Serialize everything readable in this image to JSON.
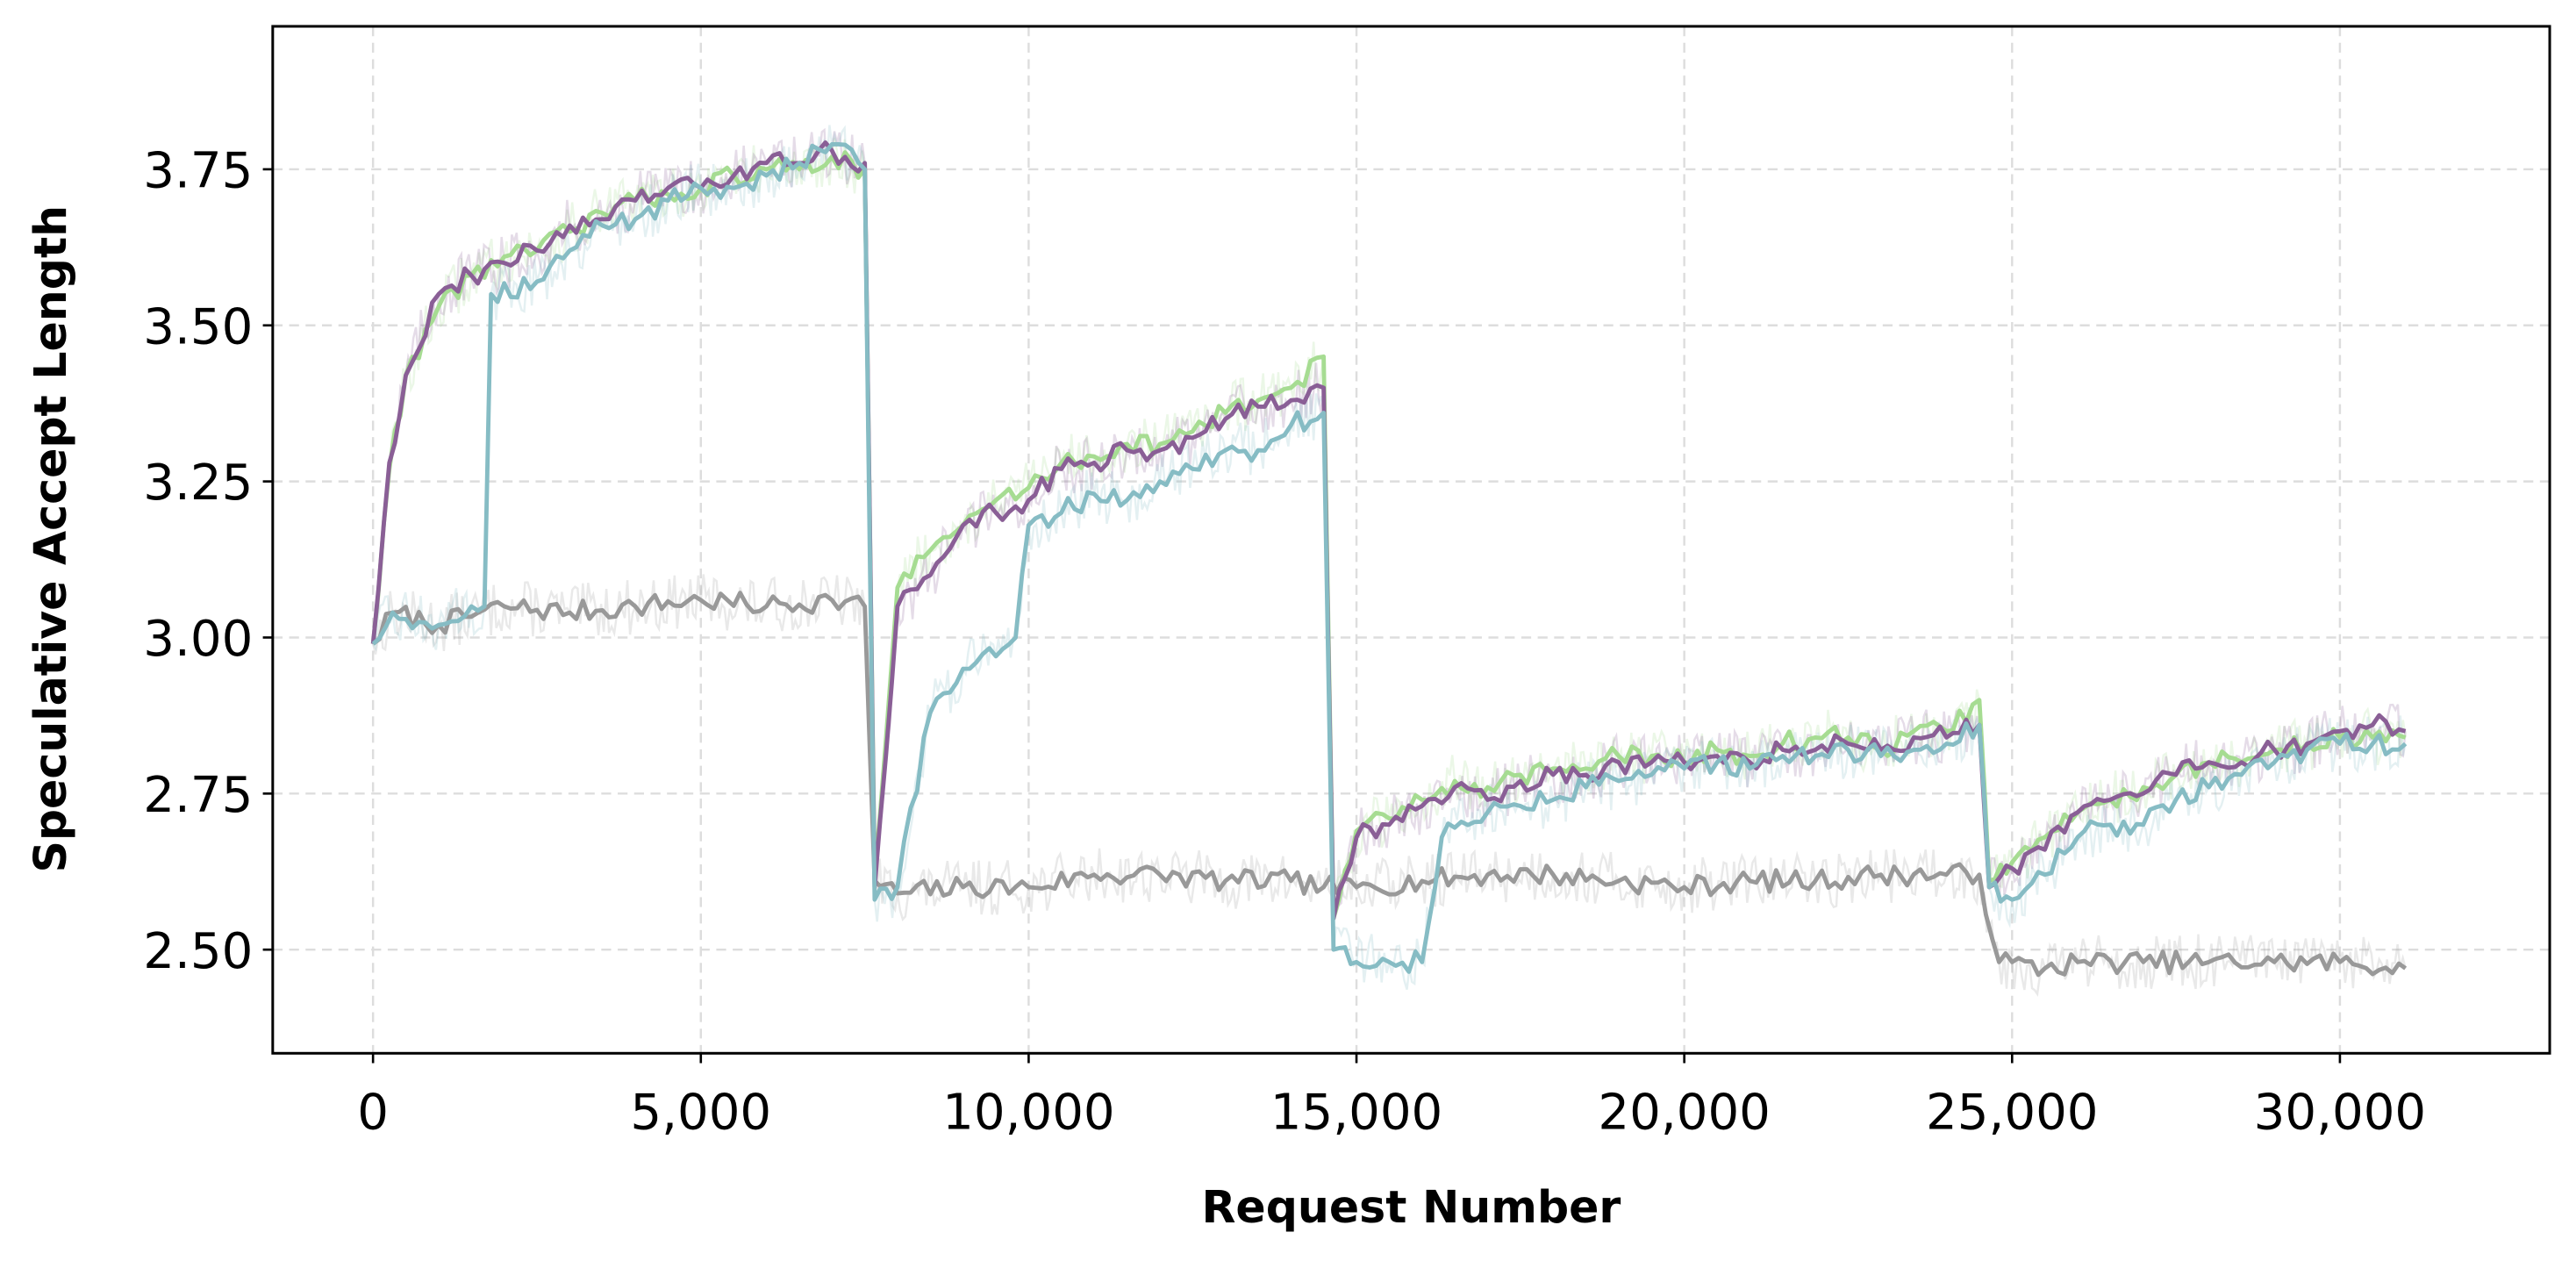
{
  "chart_data": {
    "type": "line",
    "title": "",
    "xlabel": "Request Number",
    "ylabel": "Speculative Accept Length",
    "xlim": [
      -1530,
      33200
    ],
    "ylim": [
      2.334,
      3.979
    ],
    "grid": true,
    "legend": "none",
    "xticks": [
      0,
      5000,
      10000,
      15000,
      20000,
      25000,
      30000
    ],
    "xtick_labels": [
      "0",
      "5,000",
      "10,000",
      "15,000",
      "20,000",
      "25,000",
      "30,000"
    ],
    "yticks": [
      2.5,
      2.75,
      3.0,
      3.25,
      3.5,
      3.75
    ],
    "ytick_labels": [
      "2.50",
      "2.75",
      "3.00",
      "3.25",
      "3.50",
      "3.75"
    ],
    "series": [
      {
        "name": "gray",
        "color": "#999999",
        "points": [
          [
            0,
            2.99
          ],
          [
            300,
            3.04
          ],
          [
            1000,
            3.02
          ],
          [
            2000,
            3.05
          ],
          [
            3000,
            3.04
          ],
          [
            4000,
            3.05
          ],
          [
            5000,
            3.06
          ],
          [
            6000,
            3.05
          ],
          [
            7000,
            3.06
          ],
          [
            7500,
            3.05
          ],
          [
            7650,
            2.61
          ],
          [
            8000,
            2.59
          ],
          [
            9000,
            2.6
          ],
          [
            10000,
            2.6
          ],
          [
            11000,
            2.62
          ],
          [
            12000,
            2.62
          ],
          [
            13000,
            2.61
          ],
          [
            14000,
            2.61
          ],
          [
            14500,
            2.6
          ],
          [
            15000,
            2.6
          ],
          [
            16000,
            2.61
          ],
          [
            17000,
            2.62
          ],
          [
            18000,
            2.62
          ],
          [
            19000,
            2.61
          ],
          [
            20000,
            2.6
          ],
          [
            21000,
            2.61
          ],
          [
            22000,
            2.61
          ],
          [
            23000,
            2.62
          ],
          [
            24000,
            2.62
          ],
          [
            24500,
            2.62
          ],
          [
            24800,
            2.48
          ],
          [
            25500,
            2.47
          ],
          [
            26000,
            2.48
          ],
          [
            27000,
            2.48
          ],
          [
            28000,
            2.48
          ],
          [
            29000,
            2.48
          ],
          [
            30000,
            2.48
          ],
          [
            31000,
            2.47
          ]
        ]
      },
      {
        "name": "green",
        "color": "#a6dc92",
        "points": [
          [
            0,
            2.99
          ],
          [
            250,
            3.27
          ],
          [
            500,
            3.42
          ],
          [
            1000,
            3.53
          ],
          [
            1500,
            3.58
          ],
          [
            2000,
            3.61
          ],
          [
            2500,
            3.62
          ],
          [
            3000,
            3.65
          ],
          [
            3500,
            3.68
          ],
          [
            4000,
            3.7
          ],
          [
            4500,
            3.71
          ],
          [
            5000,
            3.72
          ],
          [
            5500,
            3.74
          ],
          [
            6000,
            3.75
          ],
          [
            6500,
            3.75
          ],
          [
            7000,
            3.77
          ],
          [
            7500,
            3.75
          ],
          [
            7650,
            2.62
          ],
          [
            8000,
            3.08
          ],
          [
            8500,
            3.14
          ],
          [
            9000,
            3.18
          ],
          [
            9500,
            3.22
          ],
          [
            10000,
            3.24
          ],
          [
            10500,
            3.28
          ],
          [
            11000,
            3.29
          ],
          [
            11500,
            3.31
          ],
          [
            12000,
            3.31
          ],
          [
            12500,
            3.33
          ],
          [
            13000,
            3.36
          ],
          [
            13500,
            3.38
          ],
          [
            14000,
            3.4
          ],
          [
            14500,
            3.45
          ],
          [
            14650,
            2.55
          ],
          [
            15000,
            2.69
          ],
          [
            15500,
            2.71
          ],
          [
            16000,
            2.74
          ],
          [
            16500,
            2.77
          ],
          [
            17000,
            2.76
          ],
          [
            17500,
            2.78
          ],
          [
            18000,
            2.79
          ],
          [
            18500,
            2.79
          ],
          [
            19000,
            2.81
          ],
          [
            19500,
            2.81
          ],
          [
            20000,
            2.8
          ],
          [
            20500,
            2.82
          ],
          [
            21000,
            2.81
          ],
          [
            21500,
            2.83
          ],
          [
            22000,
            2.84
          ],
          [
            22500,
            2.84
          ],
          [
            23000,
            2.82
          ],
          [
            23500,
            2.85
          ],
          [
            24000,
            2.85
          ],
          [
            24500,
            2.9
          ],
          [
            24650,
            2.61
          ],
          [
            25000,
            2.64
          ],
          [
            25500,
            2.68
          ],
          [
            26000,
            2.72
          ],
          [
            26500,
            2.74
          ],
          [
            27000,
            2.76
          ],
          [
            27500,
            2.78
          ],
          [
            28000,
            2.8
          ],
          [
            28500,
            2.8
          ],
          [
            29000,
            2.82
          ],
          [
            29500,
            2.83
          ],
          [
            30000,
            2.84
          ],
          [
            30500,
            2.84
          ],
          [
            31000,
            2.84
          ]
        ]
      },
      {
        "name": "purple",
        "color": "#8a5f96",
        "points": [
          [
            0,
            2.99
          ],
          [
            250,
            3.28
          ],
          [
            500,
            3.42
          ],
          [
            1000,
            3.55
          ],
          [
            1500,
            3.58
          ],
          [
            2000,
            3.6
          ],
          [
            2500,
            3.62
          ],
          [
            3000,
            3.66
          ],
          [
            3500,
            3.67
          ],
          [
            4000,
            3.7
          ],
          [
            4500,
            3.72
          ],
          [
            5000,
            3.72
          ],
          [
            5500,
            3.74
          ],
          [
            6000,
            3.76
          ],
          [
            6500,
            3.76
          ],
          [
            7000,
            3.78
          ],
          [
            7500,
            3.76
          ],
          [
            7650,
            2.6
          ],
          [
            8000,
            3.05
          ],
          [
            8500,
            3.1
          ],
          [
            9000,
            3.18
          ],
          [
            9500,
            3.2
          ],
          [
            10000,
            3.22
          ],
          [
            10500,
            3.27
          ],
          [
            11000,
            3.28
          ],
          [
            11500,
            3.3
          ],
          [
            12000,
            3.3
          ],
          [
            12500,
            3.32
          ],
          [
            13000,
            3.35
          ],
          [
            13500,
            3.37
          ],
          [
            14000,
            3.38
          ],
          [
            14500,
            3.4
          ],
          [
            14650,
            2.55
          ],
          [
            15000,
            2.68
          ],
          [
            15500,
            2.7
          ],
          [
            16000,
            2.73
          ],
          [
            16500,
            2.76
          ],
          [
            17000,
            2.74
          ],
          [
            17500,
            2.77
          ],
          [
            18000,
            2.78
          ],
          [
            18500,
            2.78
          ],
          [
            19000,
            2.8
          ],
          [
            19500,
            2.8
          ],
          [
            20000,
            2.8
          ],
          [
            20500,
            2.81
          ],
          [
            21000,
            2.8
          ],
          [
            21500,
            2.82
          ],
          [
            22000,
            2.82
          ],
          [
            22500,
            2.83
          ],
          [
            23000,
            2.82
          ],
          [
            23500,
            2.84
          ],
          [
            24000,
            2.84
          ],
          [
            24500,
            2.86
          ],
          [
            24650,
            2.6
          ],
          [
            25000,
            2.63
          ],
          [
            25500,
            2.66
          ],
          [
            26000,
            2.72
          ],
          [
            26500,
            2.74
          ],
          [
            27000,
            2.75
          ],
          [
            27500,
            2.78
          ],
          [
            28000,
            2.8
          ],
          [
            28500,
            2.8
          ],
          [
            29000,
            2.82
          ],
          [
            29500,
            2.83
          ],
          [
            30000,
            2.85
          ],
          [
            30500,
            2.86
          ],
          [
            31000,
            2.85
          ]
        ]
      },
      {
        "name": "teal",
        "color": "#86bcc4",
        "points": [
          [
            0,
            2.99
          ],
          [
            300,
            3.04
          ],
          [
            1000,
            3.02
          ],
          [
            1500,
            3.05
          ],
          [
            1700,
            3.05
          ],
          [
            1800,
            3.55
          ],
          [
            2500,
            3.57
          ],
          [
            3000,
            3.62
          ],
          [
            3500,
            3.66
          ],
          [
            4000,
            3.67
          ],
          [
            4500,
            3.7
          ],
          [
            5000,
            3.72
          ],
          [
            5500,
            3.72
          ],
          [
            6000,
            3.74
          ],
          [
            6500,
            3.76
          ],
          [
            7000,
            3.79
          ],
          [
            7500,
            3.75
          ],
          [
            7650,
            2.58
          ],
          [
            8000,
            2.6
          ],
          [
            8500,
            2.88
          ],
          [
            9000,
            2.95
          ],
          [
            9500,
            2.97
          ],
          [
            9800,
            3.0
          ],
          [
            10000,
            3.18
          ],
          [
            10500,
            3.2
          ],
          [
            11000,
            3.23
          ],
          [
            11500,
            3.22
          ],
          [
            12000,
            3.25
          ],
          [
            12500,
            3.27
          ],
          [
            13000,
            3.3
          ],
          [
            13500,
            3.3
          ],
          [
            14000,
            3.34
          ],
          [
            14500,
            3.36
          ],
          [
            14650,
            2.5
          ],
          [
            15000,
            2.48
          ],
          [
            15500,
            2.48
          ],
          [
            16000,
            2.48
          ],
          [
            16300,
            2.68
          ],
          [
            17000,
            2.72
          ],
          [
            17500,
            2.73
          ],
          [
            18000,
            2.74
          ],
          [
            18500,
            2.76
          ],
          [
            19000,
            2.77
          ],
          [
            19500,
            2.78
          ],
          [
            20000,
            2.79
          ],
          [
            20500,
            2.8
          ],
          [
            21000,
            2.79
          ],
          [
            21500,
            2.81
          ],
          [
            22000,
            2.81
          ],
          [
            22500,
            2.82
          ],
          [
            23000,
            2.81
          ],
          [
            23500,
            2.82
          ],
          [
            24000,
            2.83
          ],
          [
            24500,
            2.86
          ],
          [
            24650,
            2.6
          ],
          [
            25000,
            2.58
          ],
          [
            25500,
            2.62
          ],
          [
            26000,
            2.68
          ],
          [
            26500,
            2.7
          ],
          [
            27000,
            2.7
          ],
          [
            27500,
            2.74
          ],
          [
            28000,
            2.76
          ],
          [
            28500,
            2.78
          ],
          [
            29000,
            2.8
          ],
          [
            29500,
            2.82
          ],
          [
            30000,
            2.83
          ],
          [
            30500,
            2.83
          ],
          [
            31000,
            2.83
          ]
        ]
      }
    ]
  }
}
